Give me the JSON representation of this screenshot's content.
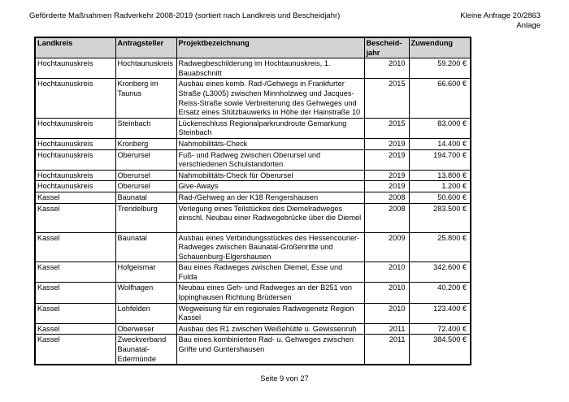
{
  "page": {
    "title": "Geförderte Maßnahmen Radverkehr 2008-2019 (sortiert nach Landkreis und Bescheidjahr)",
    "doc_ref_line1": "Kleine Anfrage 20/2863",
    "doc_ref_line2": "Anlage",
    "footer": "Seite 9 von 27"
  },
  "colors": {
    "header_row_bg": "#d3d3d3",
    "table_border": "#000000",
    "page_bg": "#ffffff"
  },
  "table": {
    "headers": {
      "landkreis": "Landkreis",
      "antragsteller": "Antragsteller",
      "projekt": "Projektbezeichnung",
      "jahr": "Bescheid-\njahr",
      "zuwendung": "Zuwendung"
    },
    "rows": [
      {
        "landkreis": "Hochtaunuskreis",
        "antragsteller": "Hochtaunuskreis",
        "projekt": "Radwegbeschilderung im Hochtaunuskreis, 1. Bauabschnitt",
        "jahr": "2010",
        "zuwendung": "59.200 €"
      },
      {
        "landkreis": "Hochtaunuskreis",
        "antragsteller": "Kronberg im Taunus",
        "projekt": "Ausbau eines komb. Rad-/Gehwegs in Frankfurter Straße (L3005) zwischen Minnholzweg und Jacques-Reiss-Straße sowie Verbreiterung des Gehweges und Ersatz eines Stützbauwerks in Höhe der Hainstraße 10",
        "jahr": "2015",
        "zuwendung": "66.600 €"
      },
      {
        "landkreis": "Hochtaunuskreis",
        "antragsteller": "Steinbach",
        "projekt": "Lückenschluss Regionalparkrundroute Gemarkung Steinbach",
        "jahr": "2015",
        "zuwendung": "83.000 €"
      },
      {
        "landkreis": "Hochtaunuskreis",
        "antragsteller": "Kronberg",
        "projekt": "Nahmobilitäts-Check",
        "jahr": "2019",
        "zuwendung": "14.400 €"
      },
      {
        "landkreis": "Hochtaunuskreis",
        "antragsteller": "Oberursel",
        "projekt": "Fuß- und Radweg zwischen Oberursel und verschiedenen Schulstandorten",
        "jahr": "2019",
        "zuwendung": "194.700 €"
      },
      {
        "landkreis": "Hochtaunuskreis",
        "antragsteller": "Oberursel",
        "projekt": "Nahmobilitäts-Check für Oberursel",
        "jahr": "2019",
        "zuwendung": "13.800 €"
      },
      {
        "landkreis": "Hochtaunuskreis",
        "antragsteller": "Oberursel",
        "projekt": "Give-Aways",
        "jahr": "2019",
        "zuwendung": "1.200 €"
      },
      {
        "landkreis": "Kassel",
        "antragsteller": "Baunatal",
        "projekt": "Rad-/Gehweg an der K18 Rengershausen",
        "jahr": "2008",
        "zuwendung": "50.600 €"
      },
      {
        "landkreis": "Kassel",
        "antragsteller": "Trendelburg",
        "projekt": "Verlegung eines Teilstückes des Diemelradweges einschl. Neubau einer Radwegebrücke über die Diemel",
        "jahr": "2008",
        "zuwendung": "283.500 €"
      },
      {
        "landkreis": "Kassel",
        "antragsteller": "Baunatal",
        "projekt": "Ausbau eines Verbindungsstückes des Hessencourier-Radweges zwischen Baunatal-Großenritte und Schauenburg-Elgershausen",
        "jahr": "2009",
        "zuwendung": "25.800 €"
      },
      {
        "landkreis": "Kassel",
        "antragsteller": "Hofgeismar",
        "projekt": "Bau eines Radweges zwischen Diemel, Esse und Fulda",
        "jahr": "2010",
        "zuwendung": "342.600 €"
      },
      {
        "landkreis": "Kassel",
        "antragsteller": "Wolfhagen",
        "projekt": "Neubau eines Geh- und Radweges an der B251 von Ippinghausen Richtung Brüdersen",
        "jahr": "2010",
        "zuwendung": "40.200 €"
      },
      {
        "landkreis": "Kassel",
        "antragsteller": "Lohfelden",
        "projekt": "Wegweisung für ein regionales Radwegenetz Region Kassel",
        "jahr": "2010",
        "zuwendung": "123.400 €"
      },
      {
        "landkreis": "Kassel",
        "antragsteller": "Oberweser",
        "projekt": "Ausbau des R1 zwischen Weißehütte u. Gewissenruh",
        "jahr": "2011",
        "zuwendung": "72.400 €"
      },
      {
        "landkreis": "Kassel",
        "antragsteller": "Zweckverband Baunatal-Edermünde",
        "projekt": "Bau eines kombinierten Rad- u. Gehweges zwischen Grifte und Guntershausen",
        "jahr": "2011",
        "zuwendung": "384.500 €"
      }
    ]
  }
}
